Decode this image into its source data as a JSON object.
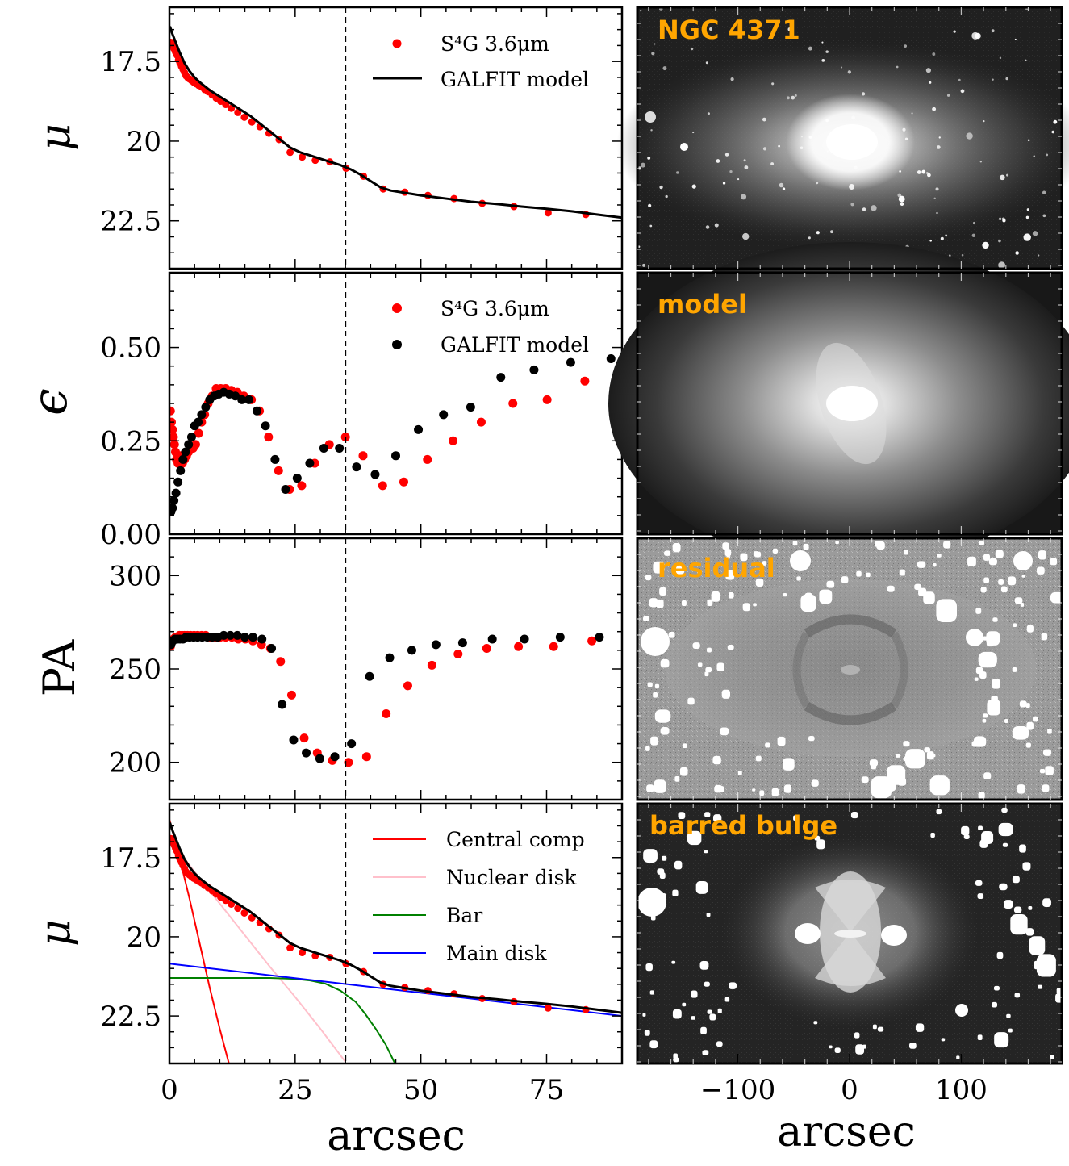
{
  "chart_data": [
    {
      "type": "line",
      "panel": "surface-brightness",
      "ylabel": "μ",
      "xlim": [
        0,
        90
      ],
      "ylim": [
        24.0,
        15.8
      ],
      "yticks": [
        17.5,
        20.0,
        22.5
      ],
      "xticks": [
        0,
        25,
        50,
        75
      ],
      "vline": 35,
      "legend": [
        "S⁴G 3.6μm",
        "GALFIT model"
      ],
      "series": [
        {
          "name": "S⁴G 3.6μm",
          "marker": "point",
          "color": "#ff0000",
          "x": [
            0.3,
            0.6,
            0.9,
            1.2,
            1.5,
            1.8,
            2.1,
            2.4,
            2.7,
            3.0,
            3.3,
            3.6,
            4.0,
            4.4,
            4.8,
            5.3,
            5.8,
            6.4,
            7.0,
            7.7,
            8.5,
            9.3,
            10.2,
            11.2,
            12.3,
            13.6,
            14.9,
            16.4,
            18.0,
            19.8,
            21.8,
            24.0,
            26.4,
            29.0,
            31.9,
            35.1,
            38.6,
            42.5,
            46.8,
            51.4,
            56.6,
            62.2,
            68.5,
            75.3,
            82.8,
            91.1
          ],
          "y": [
            16.9,
            17.0,
            17.1,
            17.2,
            17.3,
            17.45,
            17.55,
            17.65,
            17.75,
            17.85,
            17.95,
            18.0,
            18.05,
            18.1,
            18.15,
            18.2,
            18.25,
            18.3,
            18.38,
            18.45,
            18.55,
            18.65,
            18.75,
            18.85,
            18.97,
            19.1,
            19.25,
            19.4,
            19.55,
            19.75,
            19.95,
            20.35,
            20.5,
            20.6,
            20.65,
            20.85,
            21.1,
            21.5,
            21.6,
            21.7,
            21.8,
            21.95,
            22.05,
            22.25,
            22.3,
            22.45
          ]
        },
        {
          "name": "GALFIT model",
          "marker": "line",
          "color": "#000000",
          "x": [
            0.1,
            0.5,
            1,
            2,
            3,
            4,
            5,
            6,
            8,
            10,
            12,
            14,
            16,
            18,
            20,
            22,
            24,
            26,
            28,
            30,
            32,
            34,
            36,
            38,
            40,
            42,
            44,
            46,
            48,
            50,
            55,
            60,
            65,
            70,
            75,
            80,
            85,
            90
          ],
          "y": [
            16.4,
            16.6,
            16.8,
            17.2,
            17.55,
            17.8,
            18.0,
            18.15,
            18.4,
            18.6,
            18.8,
            19.0,
            19.2,
            19.45,
            19.7,
            19.95,
            20.2,
            20.35,
            20.45,
            20.55,
            20.65,
            20.75,
            20.88,
            21.05,
            21.25,
            21.45,
            21.55,
            21.6,
            21.65,
            21.7,
            21.8,
            21.9,
            21.97,
            22.05,
            22.12,
            22.2,
            22.3,
            22.4
          ]
        }
      ]
    },
    {
      "type": "scatter",
      "panel": "ellipticity",
      "ylabel": "ϵ",
      "xlim": [
        0,
        90
      ],
      "ylim": [
        0.0,
        0.7
      ],
      "yticks": [
        0.0,
        0.25,
        0.5
      ],
      "ytick_labels": [
        "0.00",
        "0.25",
        "0.50"
      ],
      "vline": 35,
      "legend": [
        "S⁴G 3.6μm",
        "GALFIT model"
      ],
      "series": [
        {
          "name": "S⁴G 3.6μm",
          "color": "#ff0000",
          "x": [
            0.2,
            0.4,
            0.6,
            0.8,
            1.0,
            1.2,
            1.4,
            1.7,
            2.0,
            2.3,
            2.6,
            3.0,
            3.4,
            3.8,
            4.2,
            4.7,
            5.2,
            5.8,
            6.4,
            7.0,
            7.7,
            8.5,
            9.3,
            10.2,
            11.2,
            12.3,
            13.5,
            14.8,
            16.3,
            17.9,
            19.7,
            21.7,
            23.9,
            26.3,
            28.9,
            31.8,
            35.0,
            38.5,
            42.4,
            46.6,
            51.3,
            56.4,
            62.0,
            68.3,
            75.1,
            82.6,
            90.8
          ],
          "y": [
            0.33,
            0.3,
            0.28,
            0.26,
            0.24,
            0.22,
            0.2,
            0.19,
            0.2,
            0.21,
            0.19,
            0.2,
            0.21,
            0.22,
            0.23,
            0.23,
            0.24,
            0.27,
            0.3,
            0.32,
            0.35,
            0.37,
            0.39,
            0.39,
            0.39,
            0.385,
            0.38,
            0.37,
            0.36,
            0.33,
            0.26,
            0.17,
            0.12,
            0.13,
            0.19,
            0.24,
            0.26,
            0.21,
            0.13,
            0.14,
            0.2,
            0.25,
            0.3,
            0.35,
            0.36,
            0.41,
            0.44
          ]
        },
        {
          "name": "GALFIT model",
          "color": "#000000",
          "x": [
            0.3,
            0.6,
            0.9,
            1.3,
            1.7,
            2.2,
            2.7,
            3.2,
            3.8,
            4.4,
            5.0,
            5.7,
            6.4,
            7.2,
            8.0,
            8.9,
            9.8,
            10.8,
            11.9,
            13.1,
            14.4,
            15.8,
            17.4,
            19.1,
            21.0,
            23.1,
            25.4,
            27.9,
            30.7,
            33.8,
            37.2,
            40.9,
            45.0,
            49.5,
            54.5,
            59.9,
            65.9,
            72.5,
            79.8,
            87.8
          ],
          "y": [
            0.06,
            0.07,
            0.09,
            0.11,
            0.14,
            0.17,
            0.2,
            0.22,
            0.24,
            0.26,
            0.29,
            0.3,
            0.32,
            0.34,
            0.36,
            0.37,
            0.375,
            0.38,
            0.375,
            0.37,
            0.36,
            0.36,
            0.33,
            0.29,
            0.2,
            0.12,
            0.15,
            0.19,
            0.23,
            0.23,
            0.18,
            0.16,
            0.21,
            0.28,
            0.32,
            0.34,
            0.42,
            0.44,
            0.46,
            0.47
          ]
        }
      ]
    },
    {
      "type": "scatter",
      "panel": "position-angle",
      "ylabel": "PA",
      "xlim": [
        0,
        90
      ],
      "ylim": [
        180,
        320
      ],
      "yticks": [
        200,
        250,
        300
      ],
      "vline": 35,
      "series": [
        {
          "name": "S⁴G 3.6μm",
          "color": "#ff0000",
          "x": [
            0.2,
            0.5,
            0.8,
            1.2,
            1.6,
            2.0,
            2.5,
            3.0,
            3.6,
            4.2,
            4.9,
            5.6,
            6.4,
            7.2,
            8.1,
            9.1,
            10.1,
            11.2,
            12.4,
            13.7,
            15.1,
            16.6,
            18.3,
            20.1,
            22.1,
            24.3,
            26.8,
            29.4,
            32.4,
            35.6,
            39.2,
            43.1,
            47.4,
            52.2,
            57.4,
            63.1,
            69.4,
            76.4,
            84.0,
            92.4
          ],
          "y": [
            262,
            265,
            266,
            267,
            267,
            268,
            268,
            268,
            268,
            268,
            268,
            268,
            268,
            268,
            267,
            267,
            267,
            267,
            267,
            266,
            266,
            265,
            263,
            261,
            254,
            236,
            213,
            205,
            201,
            200,
            203,
            226,
            241,
            252,
            258,
            261,
            262,
            262,
            265,
            267
          ]
        },
        {
          "name": "GALFIT model",
          "color": "#000000",
          "x": [
            0.3,
            0.7,
            1.1,
            1.6,
            2.1,
            2.7,
            3.3,
            4.0,
            4.8,
            5.6,
            6.5,
            7.5,
            8.5,
            9.6,
            10.8,
            12.1,
            13.5,
            15.0,
            16.6,
            18.4,
            20.3,
            22.4,
            24.7,
            27.2,
            29.9,
            32.9,
            36.2,
            39.8,
            43.8,
            48.2,
            53.0,
            58.3,
            64.2,
            70.6,
            77.7,
            85.5
          ],
          "y": [
            263,
            265,
            266,
            266,
            266,
            266,
            267,
            267,
            267,
            267,
            267,
            267,
            267,
            267,
            268,
            268,
            268,
            267,
            267,
            266,
            261,
            231,
            212,
            205,
            202,
            203,
            210,
            246,
            256,
            260,
            263,
            264,
            266,
            266,
            267,
            267
          ]
        }
      ]
    },
    {
      "type": "line",
      "panel": "decomposition",
      "ylabel": "μ",
      "xlabel": "arcsec",
      "xlim": [
        0,
        90
      ],
      "ylim": [
        24.0,
        15.8
      ],
      "yticks": [
        17.5,
        20.0,
        22.5
      ],
      "xticks": [
        0,
        25,
        50,
        75
      ],
      "vline": 35,
      "legend": [
        "Central comp",
        "Nuclear disk",
        "Bar",
        "Main disk"
      ],
      "components": [
        {
          "name": "Central comp",
          "color": "#ff0000",
          "x": [
            0,
            2,
            4,
            6,
            8,
            10,
            12
          ],
          "y": [
            16.3,
            17.5,
            18.8,
            20.2,
            21.6,
            22.9,
            24.1
          ]
        },
        {
          "name": "Nuclear disk",
          "color": "#ffc0cb",
          "x": [
            0,
            5,
            10,
            15,
            20,
            25,
            30,
            35
          ],
          "y": [
            16.9,
            17.95,
            18.95,
            19.95,
            20.95,
            21.9,
            22.9,
            23.95
          ]
        },
        {
          "name": "Bar",
          "color": "#008000",
          "x": [
            0,
            5,
            10,
            15,
            20,
            25,
            28,
            31,
            34,
            37,
            39,
            41,
            43,
            45
          ],
          "y": [
            21.3,
            21.3,
            21.3,
            21.3,
            21.3,
            21.33,
            21.38,
            21.48,
            21.7,
            22.05,
            22.45,
            22.9,
            23.4,
            24.05
          ]
        },
        {
          "name": "Main disk",
          "color": "#0000ff",
          "x": [
            0,
            90
          ],
          "y": [
            20.85,
            22.5
          ]
        }
      ],
      "data_series": "same as surface-brightness panel"
    },
    {
      "type": "image",
      "panel": "right-column",
      "xlabel": "arcsec",
      "xticks": [
        -100,
        0,
        100
      ],
      "xtick_labels": [
        "−100",
        "0",
        "100"
      ],
      "xlim": [
        -190,
        190
      ],
      "images": [
        "NGC 4371",
        "model",
        "residual",
        "barred bulge"
      ]
    }
  ],
  "labels": {
    "x_axis_title": "arcsec",
    "right_x_axis_title": "arcsec",
    "ylabel_mu": "μ",
    "ylabel_eps": "ϵ",
    "ylabel_pa": "PA",
    "legend_top_1": "S⁴G 3.6μm",
    "legend_top_2": "GALFIT model",
    "legend_eps_1": "S⁴G 3.6μm",
    "legend_eps_2": "GALFIT model",
    "legend_dec_1": "Central comp",
    "legend_dec_2": "Nuclear disk",
    "legend_dec_3": "Bar",
    "legend_dec_4": "Main disk",
    "img_1": "NGC 4371",
    "img_2": "model",
    "img_3": "residual",
    "img_4": "barred bulge"
  },
  "colors": {
    "data": "#ff0000",
    "model": "#000000",
    "label": "#ffa500"
  }
}
